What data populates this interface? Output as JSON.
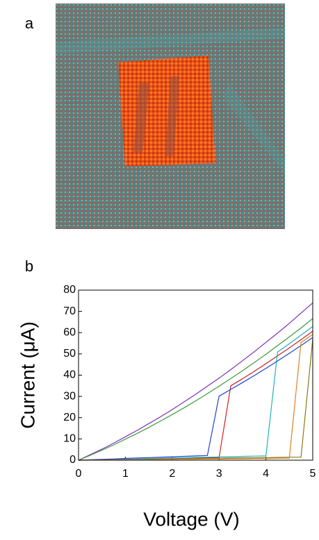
{
  "panel_a": {
    "label": "a"
  },
  "chart_data": {
    "type": "line",
    "panel_label": "b",
    "xlabel": "Voltage (V)",
    "ylabel": "Current (μA)",
    "xlim": [
      0,
      5
    ],
    "ylim": [
      0,
      80
    ],
    "xticks": [
      0,
      1,
      2,
      3,
      4,
      5
    ],
    "yticks": [
      0,
      10,
      20,
      30,
      40,
      50,
      60,
      70,
      80
    ],
    "grid": false,
    "x": [
      0,
      0.25,
      0.5,
      0.75,
      1,
      1.25,
      1.5,
      1.75,
      2,
      2.25,
      2.5,
      2.75,
      3,
      3.25,
      3.5,
      3.75,
      4,
      4.25,
      4.5,
      4.75,
      5
    ],
    "series": [
      {
        "color": "#7b2fbf",
        "values": [
          0,
          2.6,
          5.2,
          8,
          11,
          14,
          17.2,
          20.4,
          23.8,
          27.4,
          31,
          34.8,
          38.6,
          42.6,
          46.8,
          51,
          55.4,
          59.8,
          64.4,
          69.2,
          74
        ]
      },
      {
        "color": "#3a9a3a",
        "values": [
          0,
          2.3,
          4.7,
          7.2,
          9.9,
          12.6,
          15.4,
          18.4,
          21.5,
          24.6,
          27.9,
          31.3,
          34.8,
          38.4,
          42.1,
          45.9,
          49.8,
          53.9,
          58,
          62.2,
          66.6
        ]
      },
      {
        "color": "#d02020",
        "values": [
          0,
          0.1,
          0.2,
          0.3,
          0.4,
          0.5,
          0.6,
          0.7,
          0.8,
          0.9,
          1,
          1.1,
          1.2,
          35,
          38.3,
          41.8,
          45.4,
          49.1,
          52.8,
          56.7,
          60.7
        ]
      },
      {
        "color": "#8a7a10",
        "values": [
          0,
          0.1,
          0.2,
          0.2,
          0.3,
          0.4,
          0.5,
          0.5,
          0.6,
          0.7,
          0.8,
          0.8,
          0.9,
          1,
          1.1,
          1.1,
          1.2,
          1.3,
          1.4,
          1.4,
          57
        ]
      },
      {
        "color": "#20b0c0",
        "values": [
          0,
          0.1,
          0.3,
          0.4,
          0.5,
          0.6,
          0.8,
          0.9,
          1,
          1.1,
          1.3,
          1.4,
          1.5,
          1.6,
          1.8,
          1.9,
          2,
          50.9,
          54.8,
          58.8,
          62.9
        ]
      },
      {
        "color": "#2040d0",
        "values": [
          0,
          0.2,
          0.4,
          0.6,
          0.8,
          1,
          1.2,
          1.4,
          1.6,
          1.8,
          2,
          2.2,
          30.1,
          33.3,
          36.5,
          39.8,
          43.2,
          46.7,
          50.3,
          53.9,
          57.7
        ]
      },
      {
        "color": "#e08020",
        "values": [
          0,
          0.1,
          0.1,
          0.2,
          0.2,
          0.3,
          0.3,
          0.4,
          0.4,
          0.5,
          0.5,
          0.6,
          0.6,
          0.7,
          0.7,
          0.8,
          0.8,
          0.9,
          0.9,
          55.3,
          59.2
        ]
      }
    ]
  }
}
